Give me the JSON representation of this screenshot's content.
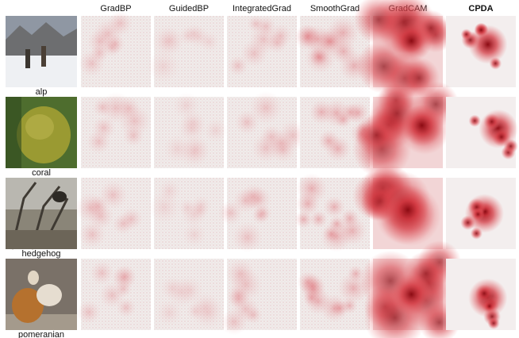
{
  "columns": [
    "GradBP",
    "GuidedBP",
    "IntegratedGrad",
    "SmoothGrad",
    "GradCAM",
    "CPDA"
  ],
  "rows": [
    "alp",
    "coral",
    "hedgehog",
    "pomeranian"
  ]
}
